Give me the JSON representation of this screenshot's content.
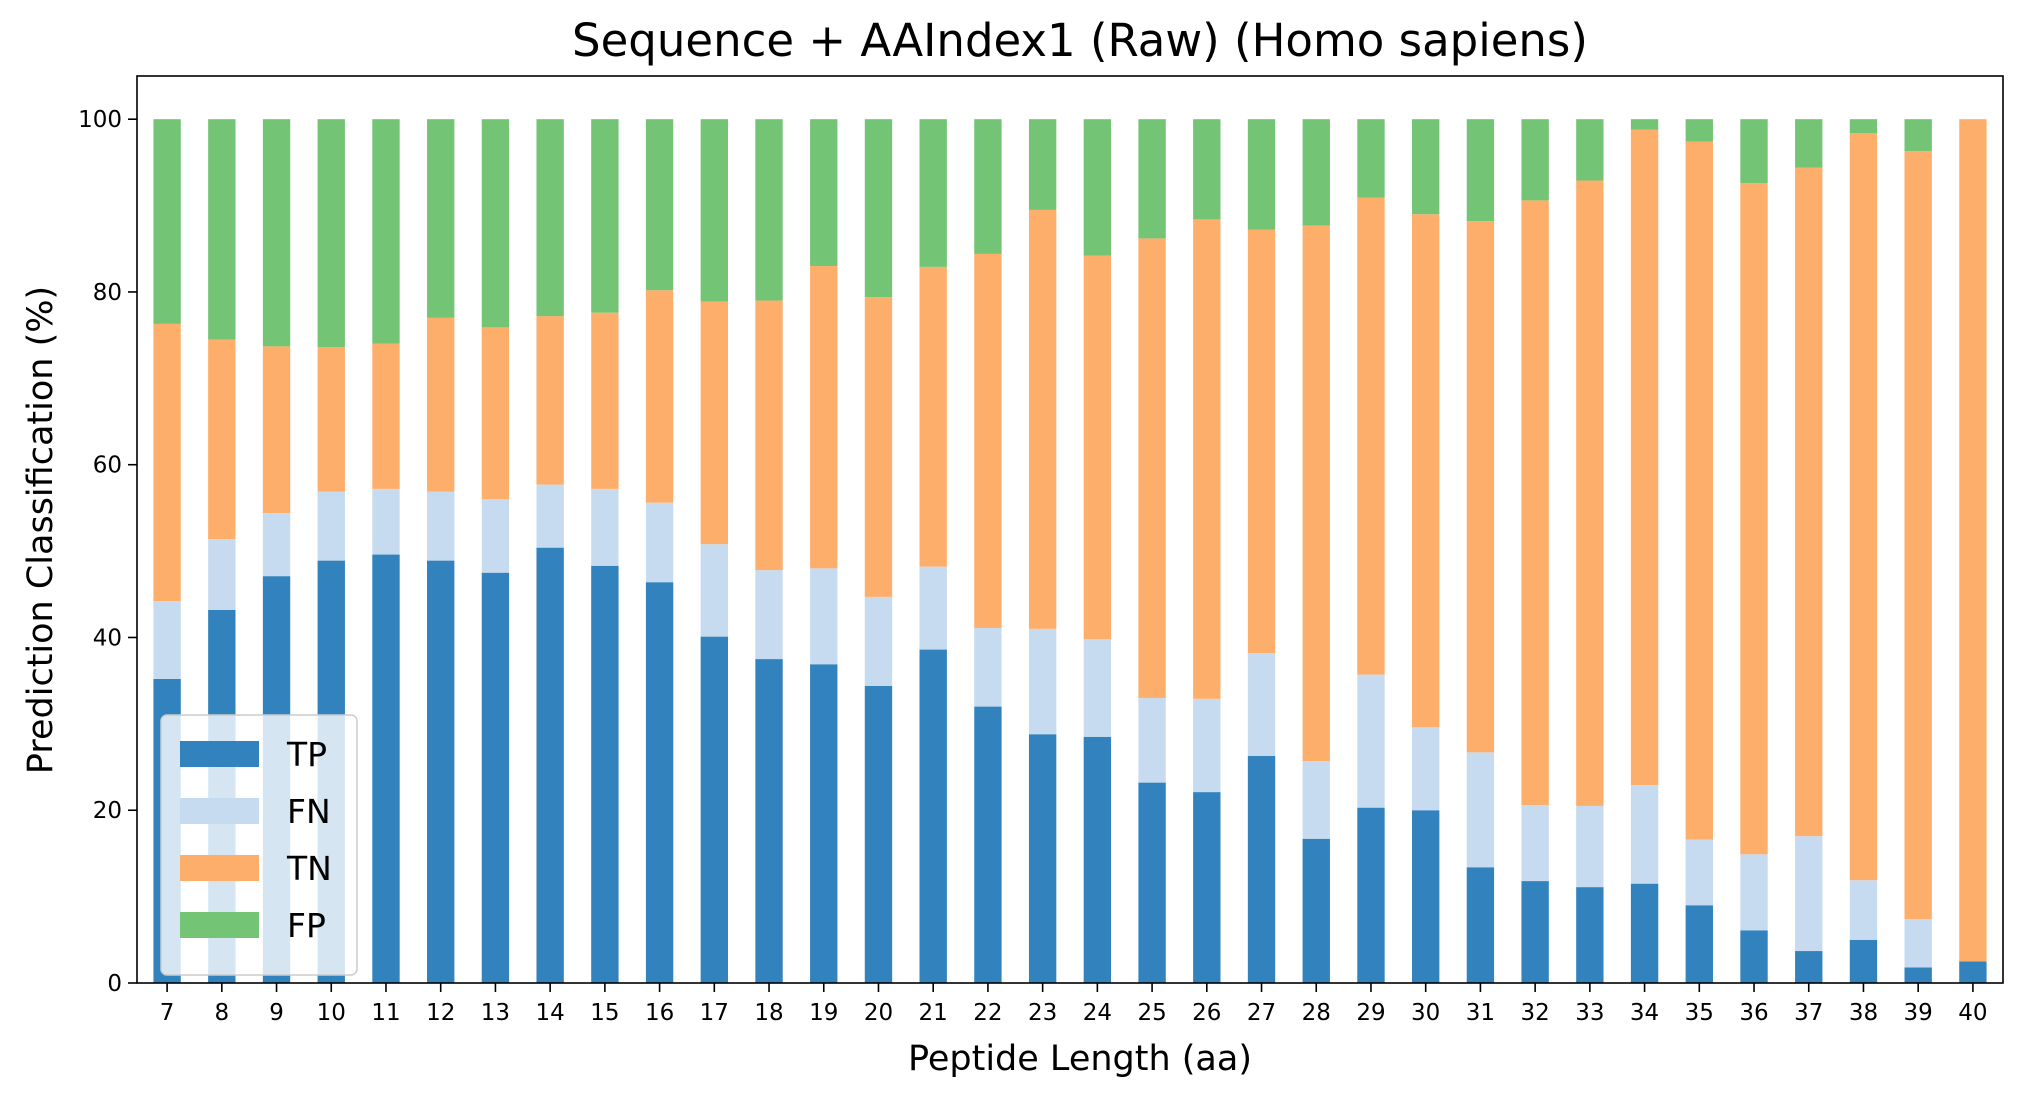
{
  "chart_data": {
    "type": "bar",
    "stacked": true,
    "title": "Sequence + AAIndex1 (Raw) (Homo sapiens)",
    "xlabel": "Peptide Length (aa)",
    "ylabel": "Prediction Classification (%)",
    "ylim": [
      0,
      105
    ],
    "yticks": [
      "0",
      "20",
      "40",
      "60",
      "80",
      "100"
    ],
    "grid": false,
    "legend_position": "lower-left",
    "categories": [
      "7",
      "8",
      "9",
      "10",
      "11",
      "12",
      "13",
      "14",
      "15",
      "16",
      "17",
      "18",
      "19",
      "20",
      "21",
      "22",
      "23",
      "24",
      "25",
      "26",
      "27",
      "28",
      "29",
      "30",
      "31",
      "32",
      "33",
      "34",
      "35",
      "36",
      "37",
      "38",
      "39",
      "40"
    ],
    "series": [
      {
        "name": "TP",
        "color": "#3182bd",
        "values": [
          35.2,
          43.2,
          47.1,
          48.9,
          49.6,
          48.9,
          47.5,
          50.4,
          48.3,
          46.4,
          40.1,
          37.5,
          36.9,
          34.4,
          38.6,
          32.0,
          28.8,
          28.5,
          23.2,
          22.1,
          26.3,
          16.7,
          20.3,
          20.0,
          13.4,
          11.8,
          11.1,
          11.5,
          9.0,
          6.1,
          3.7,
          5.0,
          1.8,
          2.5
        ]
      },
      {
        "name": "FN",
        "color": "#c6dbef",
        "values": [
          9.0,
          8.2,
          7.3,
          8.0,
          7.6,
          8.0,
          8.5,
          7.3,
          8.9,
          9.2,
          10.7,
          10.3,
          11.1,
          10.3,
          9.6,
          9.1,
          12.2,
          11.3,
          9.8,
          10.8,
          11.9,
          9.0,
          15.4,
          9.6,
          13.3,
          8.8,
          9.4,
          11.4,
          7.6,
          8.8,
          13.3,
          6.9,
          5.6,
          0.0
        ]
      },
      {
        "name": "TN",
        "color": "#fdae6b",
        "values": [
          32.1,
          23.1,
          19.3,
          16.7,
          16.8,
          20.1,
          19.9,
          19.5,
          20.4,
          24.6,
          28.1,
          31.2,
          35.0,
          34.7,
          34.7,
          43.3,
          48.5,
          44.4,
          53.2,
          55.5,
          49.0,
          62.0,
          55.2,
          59.4,
          61.5,
          70.0,
          72.4,
          75.9,
          80.8,
          77.7,
          77.4,
          86.5,
          88.9,
          97.5
        ]
      },
      {
        "name": "FP",
        "color": "#74c476",
        "values": [
          23.7,
          25.5,
          26.3,
          26.4,
          26.0,
          23.0,
          24.1,
          22.8,
          22.4,
          19.8,
          21.1,
          21.0,
          17.0,
          20.6,
          17.1,
          15.6,
          10.5,
          15.8,
          13.8,
          11.6,
          12.8,
          12.3,
          9.1,
          11.0,
          11.8,
          9.4,
          7.1,
          1.2,
          2.6,
          7.4,
          5.6,
          1.6,
          3.7,
          0.0
        ]
      }
    ]
  }
}
